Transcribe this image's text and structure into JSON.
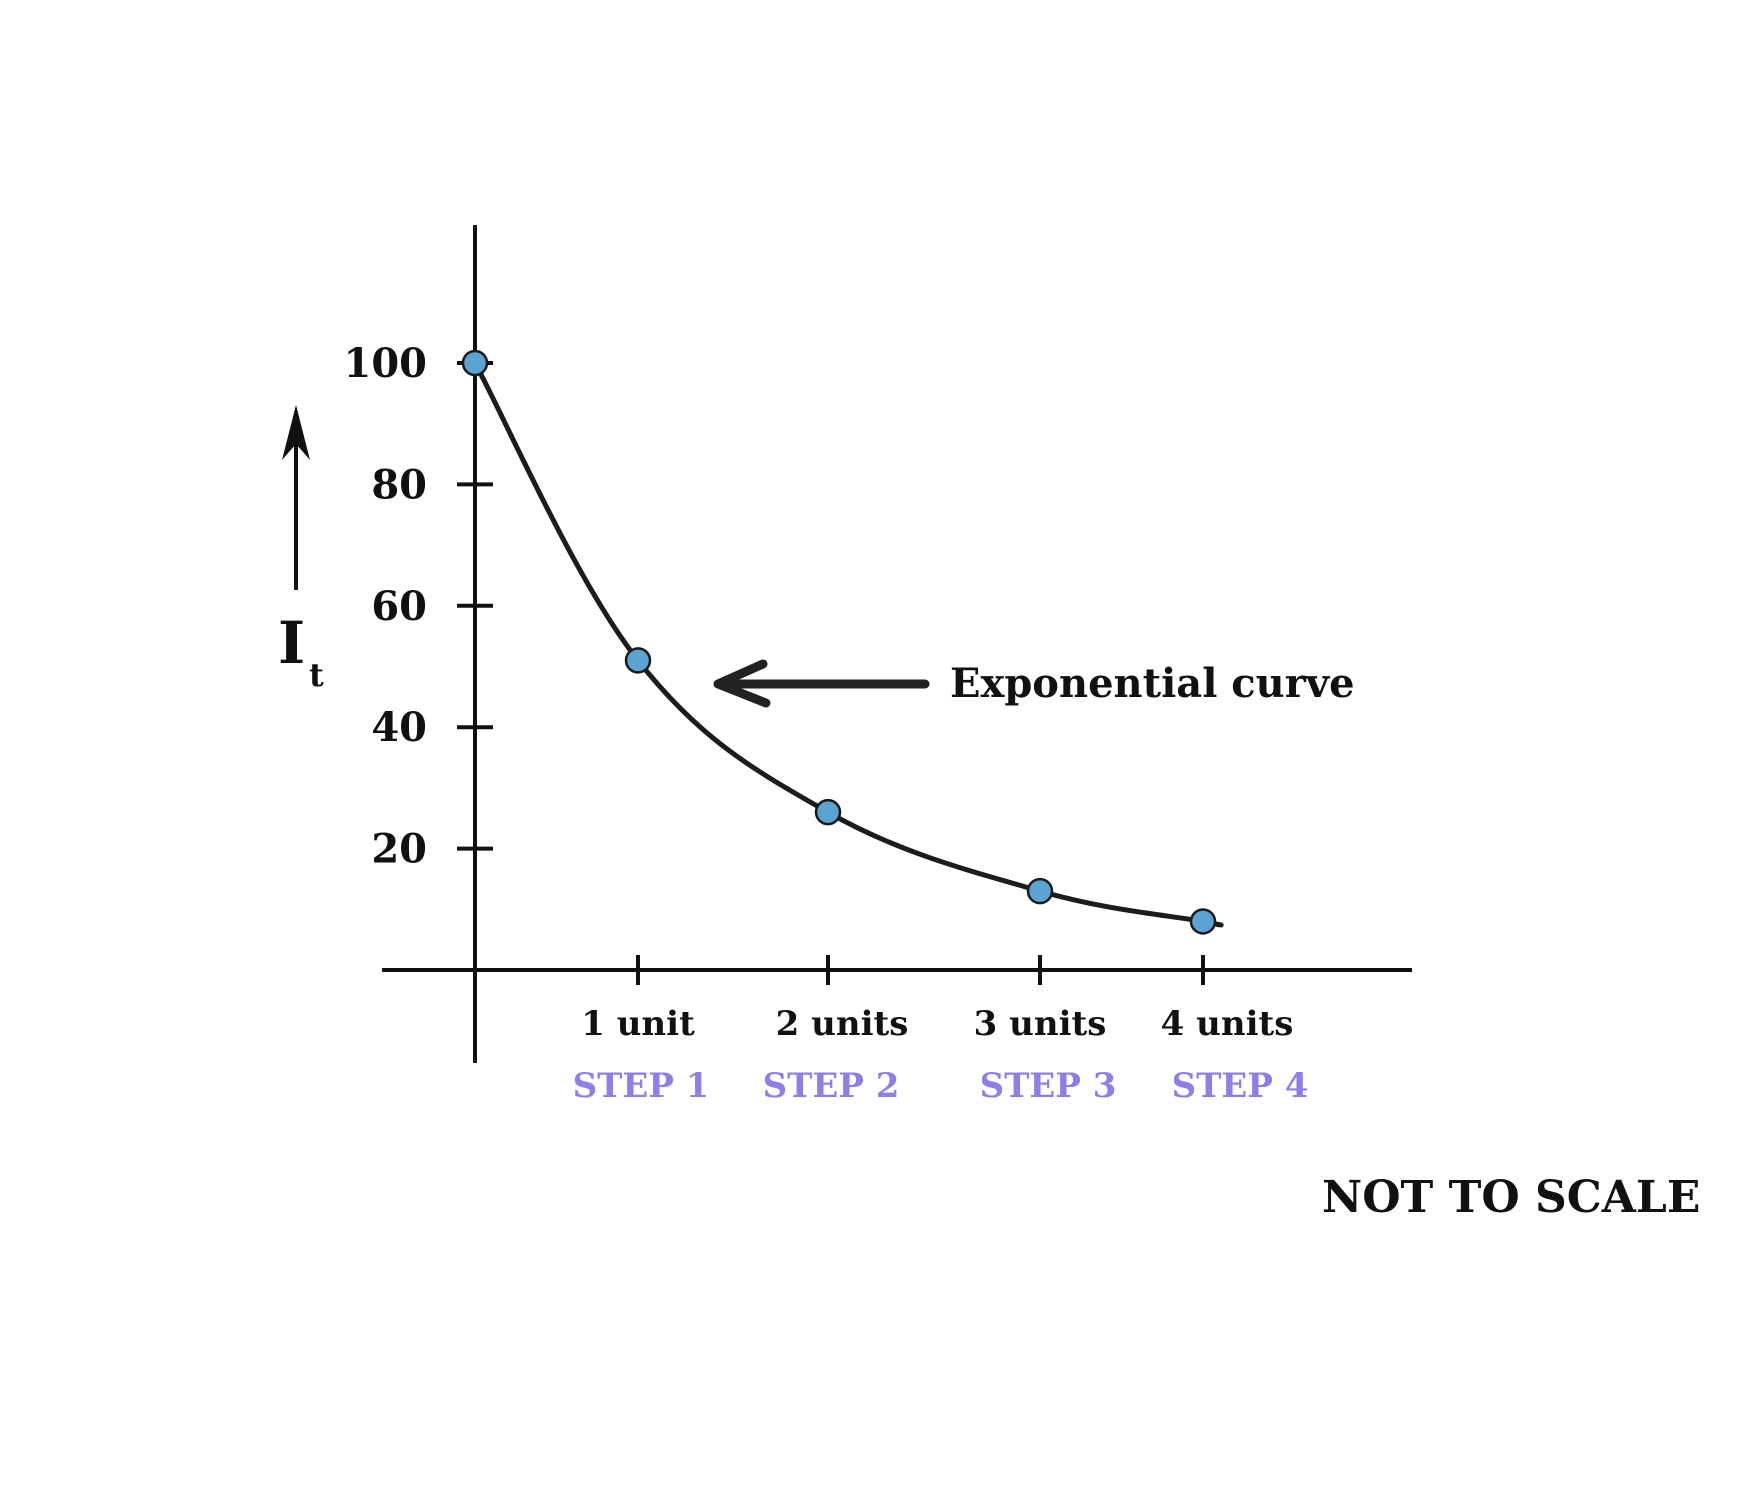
{
  "chart_data": {
    "type": "line",
    "x": [
      0,
      1,
      2,
      3,
      4
    ],
    "y": [
      100,
      51,
      26,
      13,
      8
    ],
    "ylim": [
      0,
      106
    ],
    "yticks": [
      20,
      40,
      60,
      80,
      100
    ],
    "ytick_labels": [
      "20",
      "40",
      "60",
      "80",
      "100"
    ],
    "xticks": [
      1,
      2,
      3,
      4
    ],
    "xtick_labels": [
      "1 unit",
      "2 units",
      "3 units",
      "4 units"
    ],
    "step_labels": [
      "STEP 1",
      "STEP 2",
      "STEP 3",
      "STEP 4"
    ],
    "ylabel_main": "I",
    "ylabel_sub": "t",
    "annotation": "Exponential curve",
    "note": "NOT TO SCALE",
    "grid": false,
    "colors": {
      "curve": "#1c1c1c",
      "point": "#5ba3d0",
      "step_label": "#8e7fe8",
      "axis": "#111111"
    }
  }
}
